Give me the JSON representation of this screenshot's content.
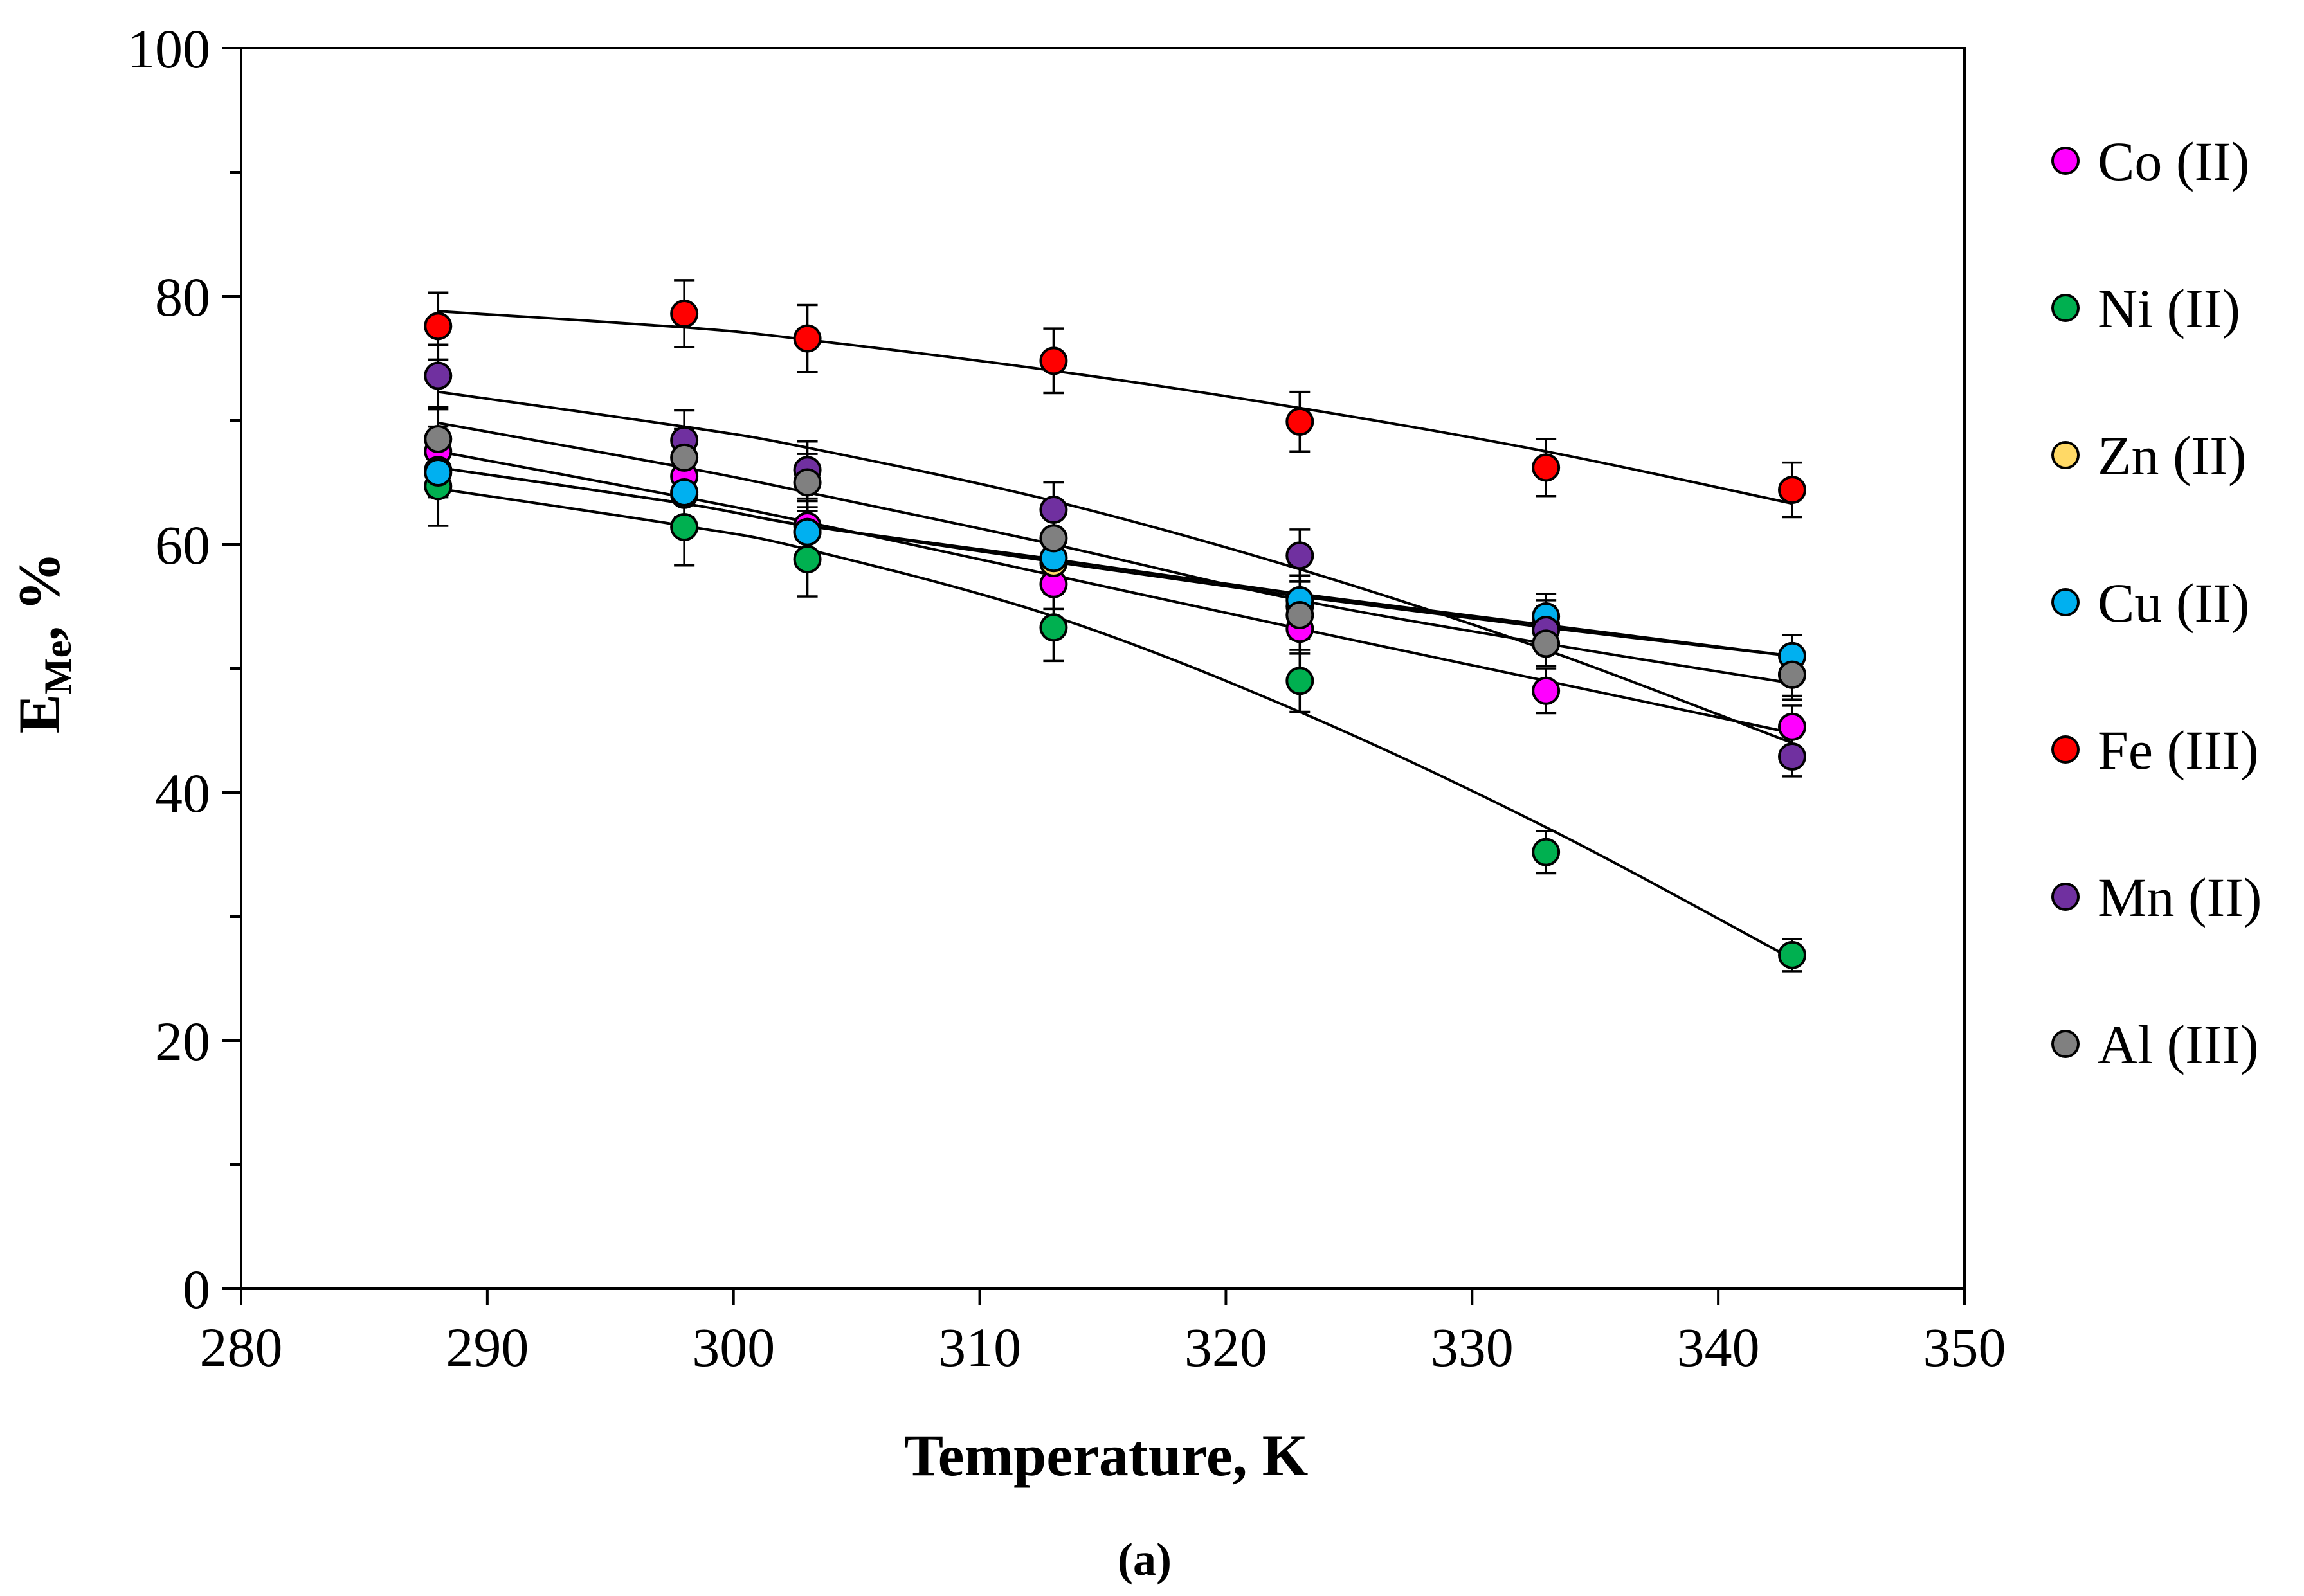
{
  "chart_data": {
    "type": "scatter",
    "caption": "(a)",
    "xlabel": "Temperature, K",
    "ylabel_main": "E",
    "ylabel_sub": "Me",
    "ylabel_suffix": ", %",
    "xlim": [
      280,
      350
    ],
    "ylim": [
      0,
      100
    ],
    "xticks": [
      280,
      290,
      300,
      310,
      320,
      330,
      340,
      350
    ],
    "yticks": [
      0,
      20,
      40,
      60,
      80,
      100
    ],
    "x": [
      288,
      298,
      303,
      313,
      323,
      333,
      343
    ],
    "series": [
      {
        "name": "Co (II)",
        "color": "#ff00ff",
        "values": [
          67.5,
          65.5,
          61.5,
          56.8,
          53.2,
          48.2,
          45.3
        ],
        "err": [
          2.0,
          2.0,
          2.0,
          2.0,
          2.0,
          1.8,
          1.7
        ],
        "fit": [
          67.5,
          63.8,
          61.8,
          57.5,
          53.2,
          49.0,
          44.8
        ]
      },
      {
        "name": "Ni (II)",
        "color": "#00b050",
        "values": [
          64.7,
          61.4,
          58.8,
          53.3,
          49.0,
          35.2,
          26.9
        ],
        "err": [
          3.2,
          3.1,
          3.0,
          2.7,
          2.5,
          1.7,
          1.3
        ],
        "fit": [
          64.5,
          61.5,
          59.6,
          54.2,
          46.5,
          37.2,
          26.6
        ]
      },
      {
        "name": "Zn (II)",
        "color": "#ffd966",
        "values": [
          66.0,
          64.0,
          61.0,
          58.5,
          55.0,
          53.5,
          49.5
        ],
        "err": [
          2.0,
          2.0,
          2.0,
          2.0,
          2.0,
          2.0,
          2.0
        ],
        "fit": [
          66.2,
          63.3,
          61.5,
          58.8,
          56.0,
          53.5,
          51.0
        ]
      },
      {
        "name": "Cu (II)",
        "color": "#00b0f0",
        "values": [
          65.8,
          64.2,
          61.0,
          58.9,
          55.5,
          54.2,
          51.0
        ],
        "err": [
          2.0,
          2.0,
          2.0,
          2.0,
          2.0,
          1.8,
          1.7
        ],
        "fit": [
          66.2,
          63.3,
          61.5,
          58.6,
          55.8,
          53.3,
          51.0
        ]
      },
      {
        "name": "Fe (III)",
        "color": "#ff0000",
        "values": [
          77.6,
          78.6,
          76.6,
          74.8,
          69.9,
          66.2,
          64.4
        ],
        "err": [
          2.7,
          2.7,
          2.7,
          2.6,
          2.4,
          2.3,
          2.2
        ],
        "fit": [
          78.8,
          77.5,
          76.5,
          74.0,
          71.0,
          67.5,
          63.3
        ]
      },
      {
        "name": "Mn (II)",
        "color": "#7030a0",
        "values": [
          73.6,
          68.4,
          66.0,
          62.8,
          59.1,
          53.1,
          42.9
        ],
        "err": [
          2.5,
          2.4,
          2.3,
          2.2,
          2.1,
          1.9,
          1.6
        ],
        "fit": [
          72.3,
          69.5,
          67.8,
          63.5,
          58.0,
          51.5,
          44.0
        ]
      },
      {
        "name": "Al (III)",
        "color": "#808080",
        "values": [
          68.5,
          67.0,
          65.0,
          60.5,
          54.3,
          52.0,
          49.5
        ],
        "err": [
          2.4,
          2.3,
          2.3,
          2.1,
          1.9,
          1.8,
          1.7
        ],
        "fit": [
          69.8,
          66.2,
          64.2,
          60.0,
          55.5,
          52.0,
          48.8
        ]
      }
    ]
  }
}
